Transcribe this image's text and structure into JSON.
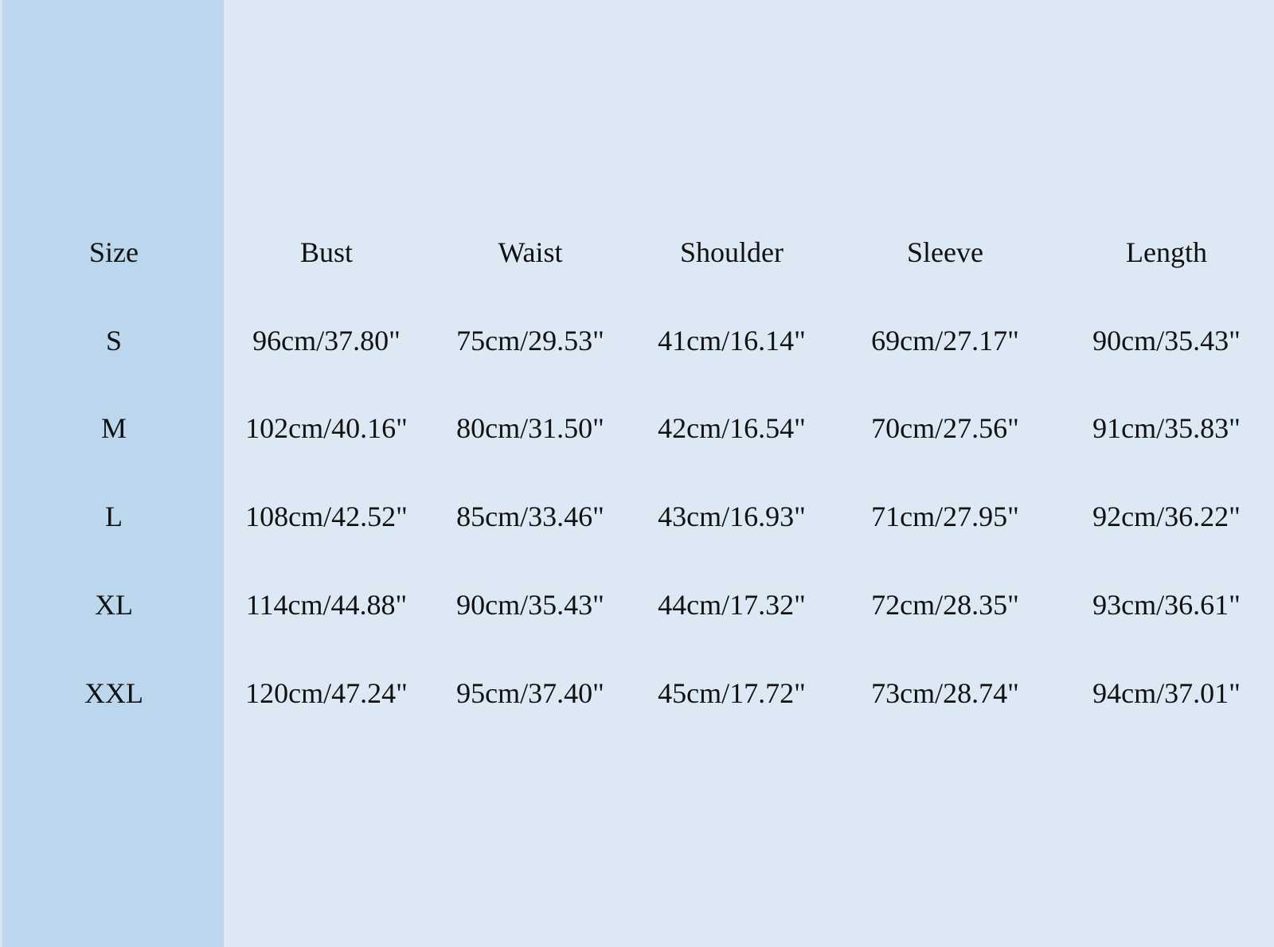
{
  "table": {
    "header": [
      "Size",
      "Bust",
      "Waist",
      "Shoulder",
      "Sleeve",
      "Length"
    ],
    "rows": [
      [
        "S",
        "96cm/37.80\"",
        "75cm/29.53\"",
        "41cm/16.14\"",
        "69cm/27.17\"",
        "90cm/35.43\""
      ],
      [
        "M",
        "102cm/40.16\"",
        "80cm/31.50\"",
        "42cm/16.54\"",
        "70cm/27.56\"",
        "91cm/35.83\""
      ],
      [
        "L",
        "108cm/42.52\"",
        "85cm/33.46\"",
        "43cm/16.93\"",
        "71cm/27.95\"",
        "92cm/36.22\""
      ],
      [
        "XL",
        "114cm/44.88\"",
        "90cm/35.43\"",
        "44cm/17.32\"",
        "72cm/28.35\"",
        "93cm/36.61\""
      ],
      [
        "XXL",
        "120cm/47.24\"",
        "95cm/37.40\"",
        "45cm/17.72\"",
        "73cm/28.74\"",
        "94cm/37.01\""
      ]
    ]
  }
}
